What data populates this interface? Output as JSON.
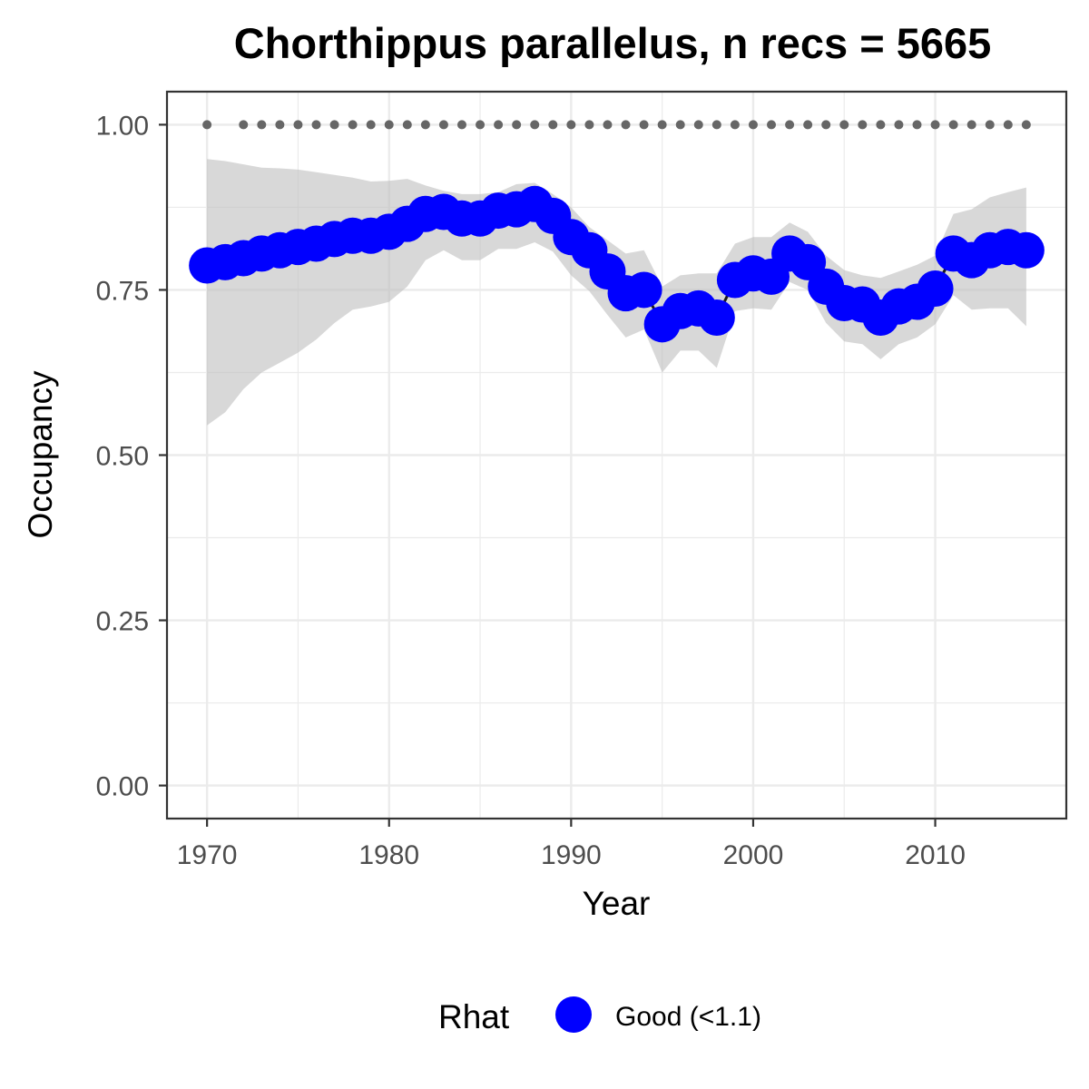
{
  "chart_data": {
    "type": "line",
    "title": "Chorthippus parallelus, n recs = 5665",
    "xlabel": "Year",
    "ylabel": "Occupancy",
    "xlim": [
      1967.8,
      2017.2
    ],
    "ylim": [
      -0.05,
      1.05
    ],
    "x_ticks": [
      1970,
      1980,
      1990,
      2000,
      2010
    ],
    "y_ticks": [
      0.0,
      0.25,
      0.5,
      0.75,
      1.0
    ],
    "y_tick_labels": [
      "0.00",
      "0.25",
      "0.50",
      "0.75",
      "1.00"
    ],
    "grid": true,
    "legend": {
      "title": "Rhat",
      "position": "bottom",
      "entries": [
        {
          "label": "Good (<1.1)",
          "color": "#0000ff"
        }
      ]
    },
    "series": [
      {
        "name": "Good (<1.1)",
        "color": "#0000ff",
        "x": [
          1970,
          1971,
          1972,
          1973,
          1974,
          1975,
          1976,
          1977,
          1978,
          1979,
          1980,
          1981,
          1982,
          1983,
          1984,
          1985,
          1986,
          1987,
          1988,
          1989,
          1990,
          1991,
          1992,
          1993,
          1994,
          1995,
          1996,
          1997,
          1998,
          1999,
          2000,
          2001,
          2002,
          2003,
          2004,
          2005,
          2006,
          2007,
          2008,
          2009,
          2010,
          2011,
          2012,
          2013,
          2014,
          2015
        ],
        "y": [
          0.787,
          0.792,
          0.798,
          0.805,
          0.81,
          0.815,
          0.82,
          0.827,
          0.832,
          0.832,
          0.838,
          0.85,
          0.865,
          0.868,
          0.858,
          0.858,
          0.87,
          0.872,
          0.88,
          0.862,
          0.83,
          0.81,
          0.778,
          0.745,
          0.75,
          0.698,
          0.718,
          0.722,
          0.708,
          0.765,
          0.775,
          0.77,
          0.805,
          0.792,
          0.755,
          0.73,
          0.728,
          0.708,
          0.725,
          0.732,
          0.752,
          0.805,
          0.795,
          0.81,
          0.815,
          0.81
        ],
        "lower": [
          0.545,
          0.565,
          0.6,
          0.625,
          0.64,
          0.655,
          0.675,
          0.7,
          0.72,
          0.725,
          0.732,
          0.755,
          0.795,
          0.81,
          0.795,
          0.795,
          0.812,
          0.812,
          0.822,
          0.808,
          0.772,
          0.748,
          0.712,
          0.678,
          0.69,
          0.625,
          0.658,
          0.658,
          0.632,
          0.718,
          0.722,
          0.72,
          0.762,
          0.75,
          0.7,
          0.672,
          0.668,
          0.645,
          0.668,
          0.678,
          0.698,
          0.742,
          0.72,
          0.722,
          0.722,
          0.695
        ],
        "upper": [
          0.948,
          0.945,
          0.94,
          0.935,
          0.934,
          0.932,
          0.928,
          0.924,
          0.92,
          0.914,
          0.915,
          0.918,
          0.908,
          0.9,
          0.895,
          0.895,
          0.898,
          0.91,
          0.912,
          0.895,
          0.875,
          0.845,
          0.825,
          0.805,
          0.81,
          0.755,
          0.772,
          0.775,
          0.775,
          0.82,
          0.83,
          0.83,
          0.852,
          0.838,
          0.802,
          0.78,
          0.772,
          0.768,
          0.778,
          0.788,
          0.802,
          0.865,
          0.872,
          0.89,
          0.898,
          0.905
        ]
      },
      {
        "name": "",
        "color": "#666666",
        "style": "dotted",
        "x": [
          1970,
          1972,
          1973,
          1974,
          1975,
          1976,
          1977,
          1978,
          1979,
          1980,
          1981,
          1982,
          1983,
          1984,
          1985,
          1986,
          1987,
          1988,
          1989,
          1990,
          1991,
          1992,
          1993,
          1994,
          1995,
          1996,
          1997,
          1998,
          1999,
          2000,
          2001,
          2002,
          2003,
          2004,
          2005,
          2006,
          2007,
          2008,
          2009,
          2010,
          2011,
          2012,
          2013,
          2014,
          2015
        ],
        "y": [
          1,
          1,
          1,
          1,
          1,
          1,
          1,
          1,
          1,
          1,
          1,
          1,
          1,
          1,
          1,
          1,
          1,
          1,
          1,
          1,
          1,
          1,
          1,
          1,
          1,
          1,
          1,
          1,
          1,
          1,
          1,
          1,
          1,
          1,
          1,
          1,
          1,
          1,
          1,
          1,
          1,
          1,
          1,
          1,
          1
        ]
      }
    ]
  }
}
